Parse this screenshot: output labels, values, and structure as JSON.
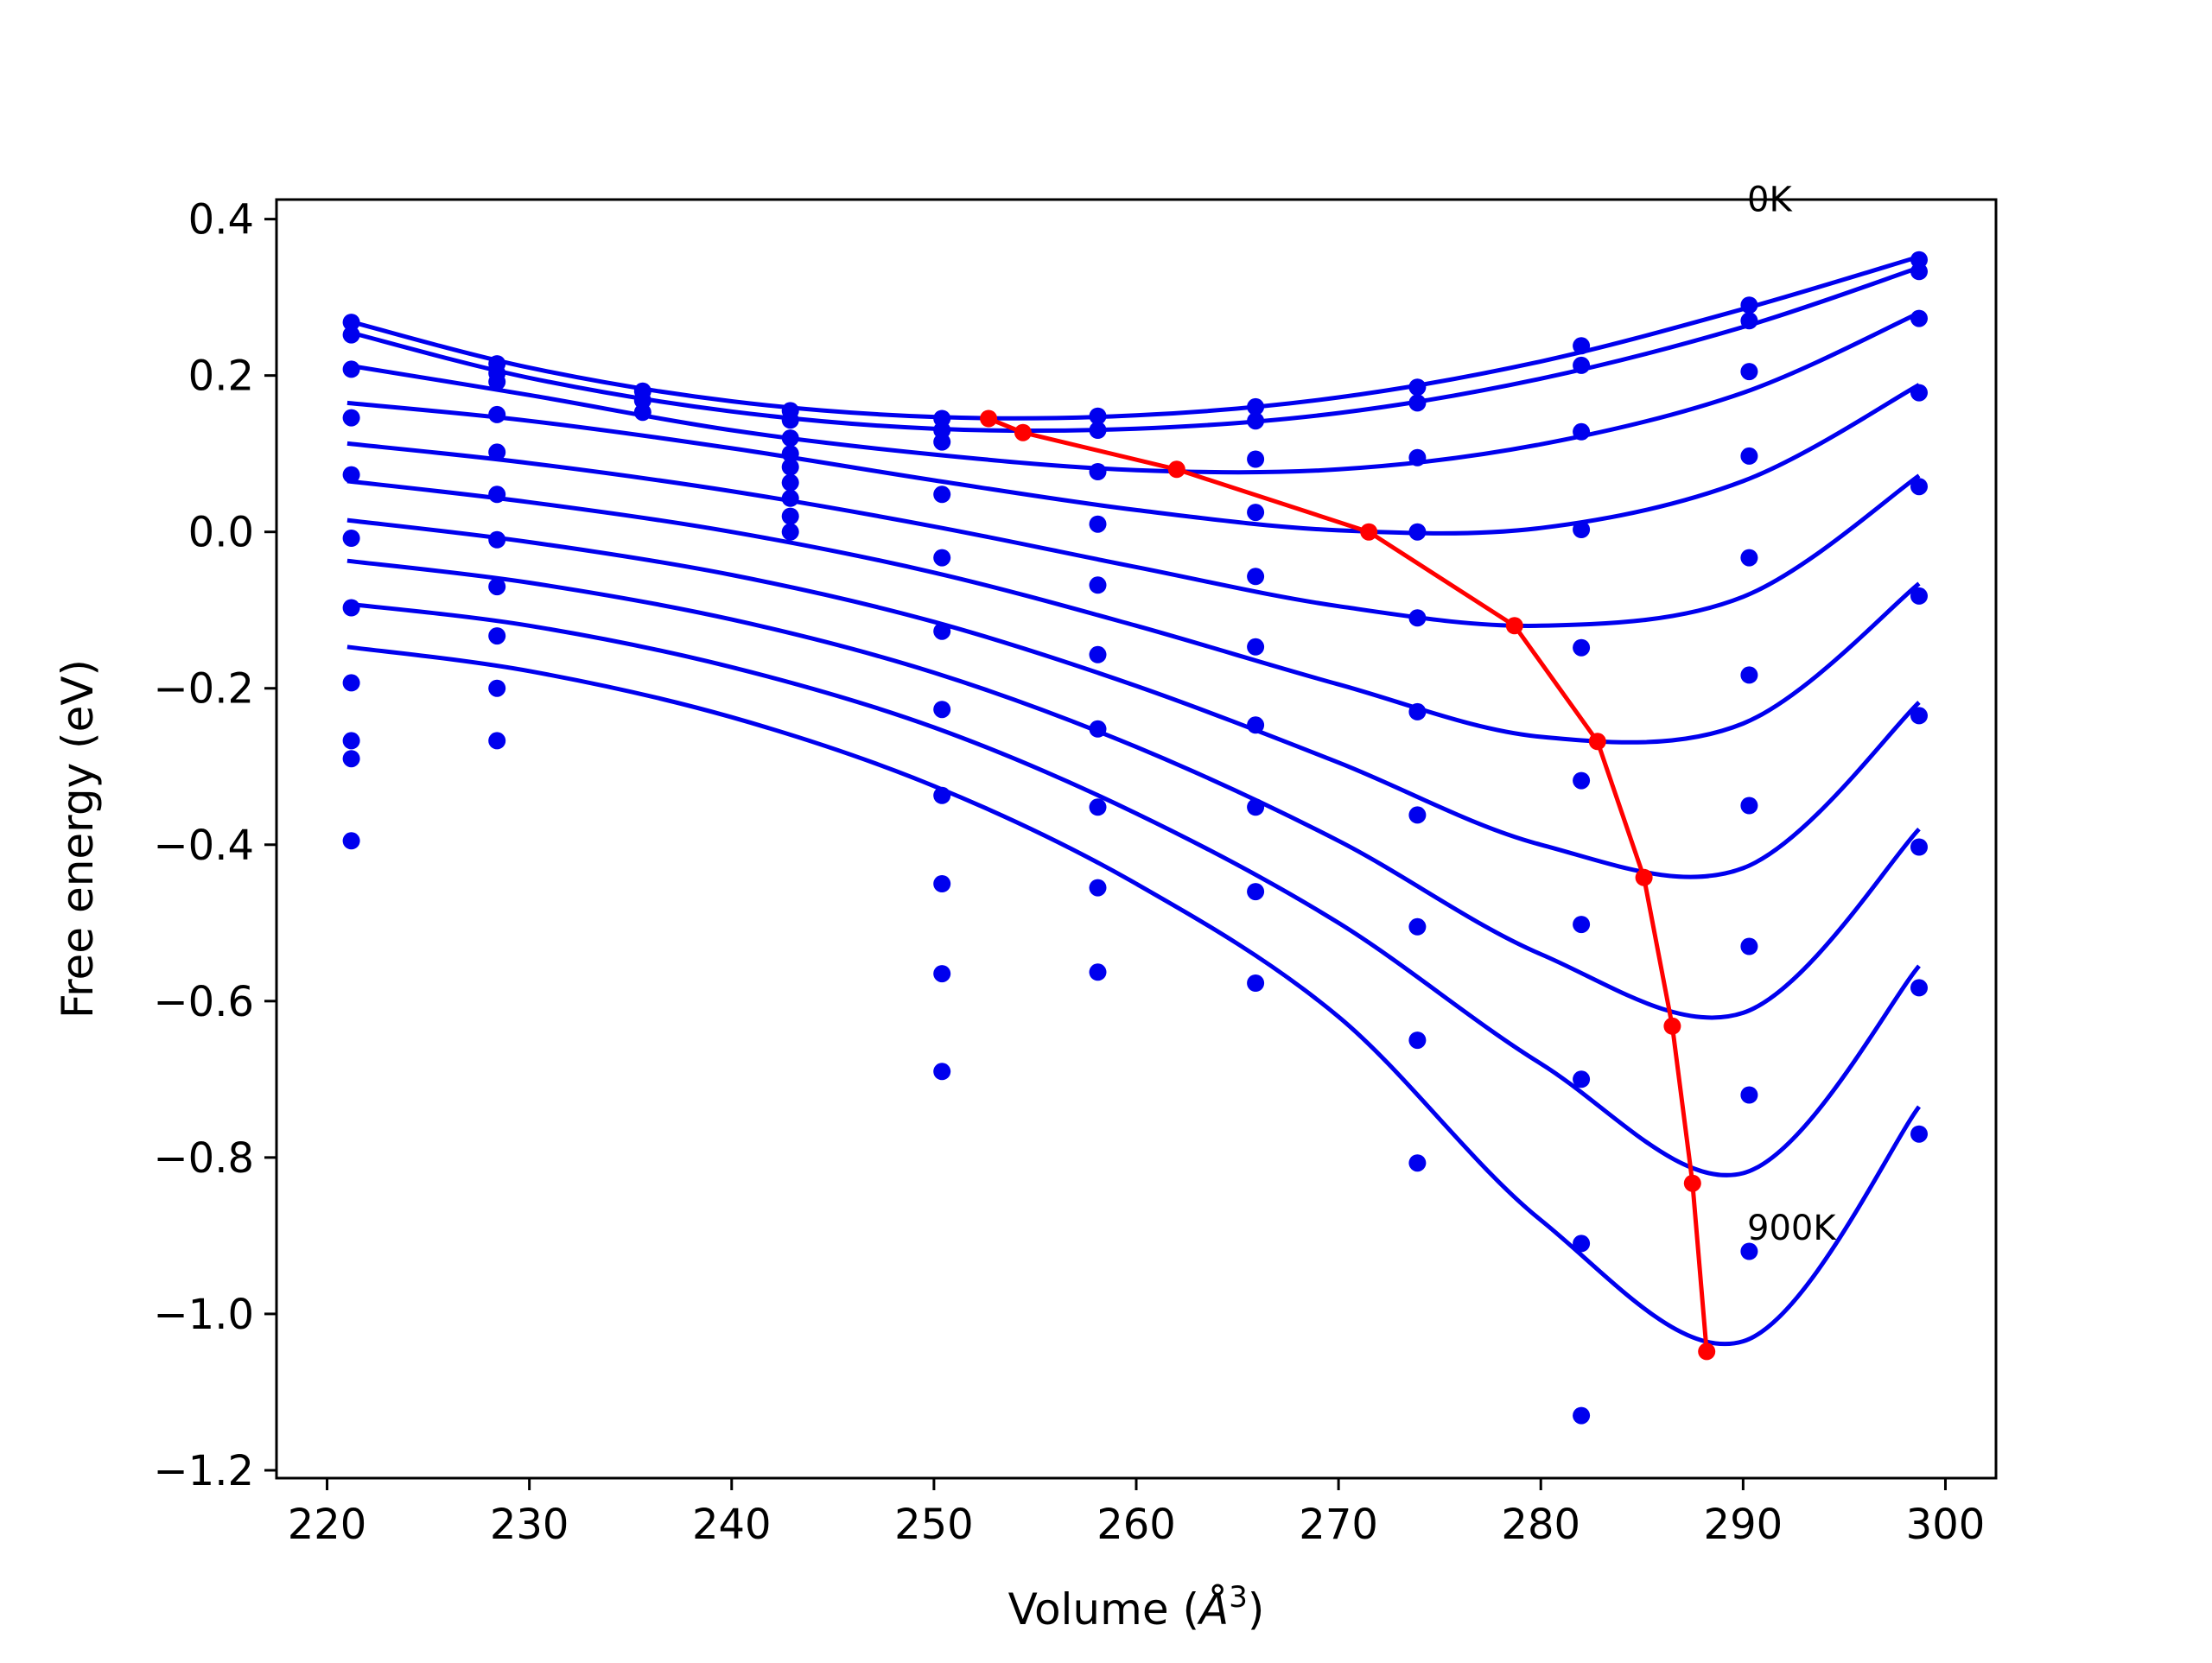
{
  "chart_data": {
    "type": "scatter",
    "xlabel_text": "Volume (",
    "xlabel_unit": "Å",
    "xlabel_exp": "3",
    "xlabel_close": ")",
    "ylabel": "Free energy (eV)",
    "xlim": [
      217.5,
      302.5
    ],
    "ylim": [
      -1.21,
      0.425
    ],
    "xticks": [
      220,
      230,
      240,
      250,
      260,
      270,
      280,
      290,
      300
    ],
    "yticks": [
      -1.2,
      -1.0,
      -0.8,
      -0.6,
      -0.4,
      -0.2,
      0.0,
      0.2,
      0.4
    ],
    "ytick_labels": [
      "−1.2",
      "−1.0",
      "−0.8",
      "−0.6",
      "−0.4",
      "−0.2",
      "0.0",
      "0.2",
      "0.4"
    ],
    "grid": false,
    "colors": {
      "fit": "#0000ee",
      "points": "#0000ee",
      "minima": "#ff0000",
      "frame": "#000000"
    },
    "annotations": [
      {
        "text": "0K",
        "x": 290.2,
        "y": 0.41
      },
      {
        "text": "900K",
        "x": 290.2,
        "y": -0.905
      }
    ],
    "series": [
      {
        "points": [
          [
            221.2,
            0.268
          ],
          [
            228.4,
            0.215
          ],
          [
            235.6,
            0.18
          ],
          [
            242.9,
            0.155
          ],
          [
            250.4,
            0.145
          ],
          [
            258.1,
            0.148
          ],
          [
            265.9,
            0.16
          ],
          [
            273.9,
            0.185
          ],
          [
            282.0,
            0.238
          ],
          [
            290.3,
            0.29
          ],
          [
            298.7,
            0.348
          ]
        ],
        "fit": [
          [
            221.0,
            0.27
          ],
          [
            230,
            0.21
          ],
          [
            240,
            0.167
          ],
          [
            250,
            0.147
          ],
          [
            260,
            0.149
          ],
          [
            270,
            0.172
          ],
          [
            280,
            0.218
          ],
          [
            290,
            0.285
          ],
          [
            298.7,
            0.352
          ]
        ]
      },
      {
        "points": [
          [
            221.2,
            0.252
          ],
          [
            228.4,
            0.203
          ],
          [
            235.6,
            0.168
          ],
          [
            242.9,
            0.143
          ],
          [
            250.4,
            0.13
          ],
          [
            258.1,
            0.13
          ],
          [
            265.9,
            0.142
          ],
          [
            273.9,
            0.165
          ],
          [
            282.0,
            0.213
          ],
          [
            290.3,
            0.27
          ],
          [
            298.7,
            0.333
          ]
        ],
        "fit": [
          [
            221.0,
            0.256
          ],
          [
            230,
            0.197
          ],
          [
            240,
            0.154
          ],
          [
            250,
            0.132
          ],
          [
            260,
            0.132
          ],
          [
            270,
            0.152
          ],
          [
            280,
            0.196
          ],
          [
            290,
            0.262
          ],
          [
            298.7,
            0.338
          ]
        ]
      },
      {
        "points": [
          [
            221.2,
            0.208
          ],
          [
            228.4,
            0.192
          ],
          [
            235.6,
            0.153
          ],
          [
            242.9,
            0.12
          ],
          [
            250.4,
            0.115
          ],
          [
            258.1,
            0.077
          ],
          [
            265.9,
            0.093
          ],
          [
            273.9,
            0.095
          ],
          [
            282.0,
            0.128
          ],
          [
            290.3,
            0.205
          ],
          [
            298.7,
            0.273
          ]
        ],
        "fit": [
          [
            221.0,
            0.213
          ],
          [
            230,
            0.175
          ],
          [
            240,
            0.13
          ],
          [
            250,
            0.099
          ],
          [
            260,
            0.079
          ],
          [
            270,
            0.08
          ],
          [
            280,
            0.112
          ],
          [
            290,
            0.178
          ],
          [
            298.7,
            0.28
          ]
        ]
      },
      {
        "points": [
          [
            221.2,
            0.146
          ],
          [
            228.4,
            0.15
          ],
          [
            242.9,
            0.1
          ],
          [
            250.4,
            0.048
          ],
          [
            258.1,
            0.01
          ],
          [
            265.9,
            0.025
          ],
          [
            273.9,
            0.0
          ],
          [
            282.0,
            0.003
          ],
          [
            290.3,
            0.097
          ],
          [
            298.7,
            0.178
          ]
        ],
        "fit": [
          [
            221.0,
            0.165
          ],
          [
            230,
            0.142
          ],
          [
            240,
            0.107
          ],
          [
            250,
            0.066
          ],
          [
            260,
            0.028
          ],
          [
            270,
            0.002
          ],
          [
            280,
            0.005
          ],
          [
            290,
            0.065
          ],
          [
            298.7,
            0.188
          ]
        ]
      },
      {
        "points": [
          [
            221.2,
            0.073
          ],
          [
            228.4,
            0.102
          ],
          [
            242.9,
            0.083
          ],
          [
            250.4,
            -0.033
          ],
          [
            258.1,
            -0.068
          ],
          [
            265.9,
            -0.057
          ],
          [
            273.9,
            -0.11
          ],
          [
            282.0,
            -0.148
          ],
          [
            290.3,
            -0.033
          ],
          [
            298.7,
            0.058
          ]
        ],
        "fit": [
          [
            221.0,
            0.113
          ],
          [
            230,
            0.088
          ],
          [
            240,
            0.052
          ],
          [
            250,
            0.007
          ],
          [
            260,
            -0.045
          ],
          [
            270,
            -0.095
          ],
          [
            280,
            -0.12
          ],
          [
            290,
            -0.083
          ],
          [
            298.7,
            0.072
          ]
        ]
      },
      {
        "points": [
          [
            221.2,
            -0.008
          ],
          [
            228.4,
            0.048
          ],
          [
            242.9,
            0.063
          ],
          [
            250.4,
            -0.127
          ],
          [
            258.1,
            -0.157
          ],
          [
            265.9,
            -0.147
          ],
          [
            273.9,
            -0.23
          ],
          [
            282.0,
            -0.318
          ],
          [
            290.3,
            -0.183
          ],
          [
            298.7,
            -0.082
          ]
        ],
        "fit": [
          [
            221.0,
            0.065
          ],
          [
            230,
            0.038
          ],
          [
            240,
            0.0
          ],
          [
            250,
            -0.052
          ],
          [
            260,
            -0.12
          ],
          [
            270,
            -0.195
          ],
          [
            280,
            -0.262
          ],
          [
            290,
            -0.245
          ],
          [
            298.7,
            -0.066
          ]
        ]
      },
      {
        "points": [
          [
            221.2,
            -0.097
          ],
          [
            228.4,
            -0.01
          ],
          [
            242.9,
            0.043
          ],
          [
            250.4,
            -0.227
          ],
          [
            258.1,
            -0.252
          ],
          [
            265.9,
            -0.247
          ],
          [
            273.9,
            -0.362
          ],
          [
            282.0,
            -0.502
          ],
          [
            290.3,
            -0.35
          ],
          [
            298.7,
            -0.235
          ]
        ],
        "fit": [
          [
            221.0,
            0.015
          ],
          [
            230,
            -0.013
          ],
          [
            240,
            -0.055
          ],
          [
            250,
            -0.115
          ],
          [
            260,
            -0.197
          ],
          [
            270,
            -0.295
          ],
          [
            280,
            -0.4
          ],
          [
            290,
            -0.43
          ],
          [
            298.7,
            -0.218
          ]
        ]
      },
      {
        "points": [
          [
            221.2,
            -0.193
          ],
          [
            228.4,
            -0.07
          ],
          [
            242.9,
            0.02
          ],
          [
            250.4,
            -0.337
          ],
          [
            258.1,
            -0.352
          ],
          [
            265.9,
            -0.352
          ],
          [
            273.9,
            -0.505
          ],
          [
            282.0,
            -0.7
          ],
          [
            290.3,
            -0.53
          ],
          [
            298.7,
            -0.403
          ]
        ],
        "fit": [
          [
            221.0,
            -0.037
          ],
          [
            230,
            -0.065
          ],
          [
            240,
            -0.112
          ],
          [
            250,
            -0.18
          ],
          [
            260,
            -0.275
          ],
          [
            270,
            -0.395
          ],
          [
            280,
            -0.54
          ],
          [
            290,
            -0.615
          ],
          [
            298.7,
            -0.38
          ]
        ]
      },
      {
        "points": [
          [
            221.2,
            -0.29
          ],
          [
            228.4,
            -0.133
          ],
          [
            242.9,
            0.0
          ],
          [
            250.4,
            -0.45
          ],
          [
            258.1,
            -0.455
          ],
          [
            265.9,
            -0.46
          ],
          [
            273.9,
            -0.65
          ],
          [
            282.0,
            -0.91
          ],
          [
            290.3,
            -0.72
          ],
          [
            298.7,
            -0.583
          ]
        ],
        "fit": [
          [
            221.0,
            -0.092
          ],
          [
            230,
            -0.12
          ],
          [
            240,
            -0.173
          ],
          [
            250,
            -0.25
          ],
          [
            260,
            -0.36
          ],
          [
            270,
            -0.5
          ],
          [
            280,
            -0.68
          ],
          [
            290,
            -0.82
          ],
          [
            298.7,
            -0.555
          ]
        ]
      },
      {
        "points": [
          [
            221.2,
            -0.395
          ],
          [
            228.4,
            -0.2
          ],
          [
            250.4,
            -0.565
          ],
          [
            258.1,
            -0.563
          ],
          [
            265.9,
            -0.577
          ],
          [
            273.9,
            -0.807
          ],
          [
            282.0,
            -1.13
          ],
          [
            290.3,
            -0.92
          ],
          [
            298.7,
            -0.77
          ]
        ],
        "fit": [
          [
            221.0,
            -0.147
          ],
          [
            230,
            -0.178
          ],
          [
            240,
            -0.237
          ],
          [
            250,
            -0.325
          ],
          [
            260,
            -0.45
          ],
          [
            270,
            -0.62
          ],
          [
            280,
            -0.88
          ],
          [
            290,
            -1.035
          ],
          [
            298.7,
            -0.735
          ]
        ]
      },
      {
        "points": [
          [
            250.4,
            -0.69
          ]
        ],
        "fit": []
      },
      {
        "points": [
          [
            221.2,
            -0.267
          ],
          [
            228.4,
            -0.267
          ]
        ],
        "fit": []
      }
    ],
    "minima": {
      "x": [
        252.7,
        254.4,
        262.0,
        271.5,
        278.7,
        282.8,
        285.1,
        286.5,
        287.5,
        288.2
      ],
      "y": [
        0.145,
        0.127,
        0.08,
        0.0,
        -0.12,
        -0.268,
        -0.442,
        -0.632,
        -0.833,
        -1.048
      ]
    }
  }
}
